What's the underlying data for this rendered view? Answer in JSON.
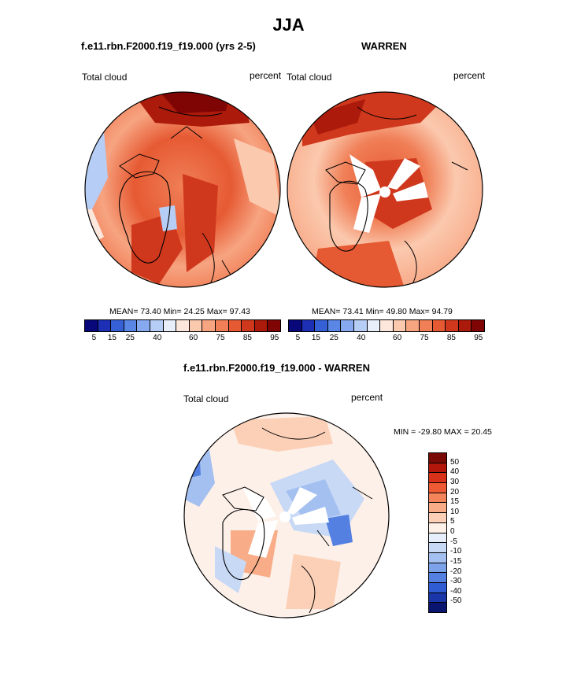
{
  "figure": {
    "title": "JJA"
  },
  "panel_left": {
    "subtitle": "f.e11.rbn.F2000.f19_f19.000 (yrs 2-5)",
    "field_label": "Total cloud",
    "units": "percent",
    "stats": "MEAN=  73.40  Min=  24.25  Max=  97.43"
  },
  "panel_right": {
    "subtitle": "WARREN",
    "field_label": "Total cloud",
    "units": "percent",
    "stats": "MEAN=  73.41  Min=  49.80  Max=  94.79"
  },
  "panel_diff": {
    "subtitle": "f.e11.rbn.F2000.f19_f19.000 - WARREN",
    "field_label": "Total cloud",
    "units": "percent",
    "minmax": "MIN = -29.80 MAX =  20.45"
  },
  "colorbar_top": {
    "colors": [
      "#08087a",
      "#1c2fb5",
      "#3560d6",
      "#5a86e6",
      "#86a9ef",
      "#b6cdf5",
      "#e8eefa",
      "#fde7dc",
      "#fbc9ae",
      "#f7a481",
      "#f07f57",
      "#e65a33",
      "#d0381d",
      "#ab1a0b",
      "#7f0505"
    ],
    "tick_labels": [
      "5",
      "15",
      "25",
      "40",
      "60",
      "75",
      "85",
      "95"
    ]
  },
  "colorbar_diff": {
    "colors_top_to_bottom": [
      "#7a0a05",
      "#b3160b",
      "#d9321a",
      "#ee5a34",
      "#f4845a",
      "#f8ac87",
      "#fbd0b7",
      "#fdf0e8",
      "#e6eefb",
      "#c8d9f6",
      "#a4c0f1",
      "#7ca3ea",
      "#5380e1",
      "#2f5bd3",
      "#1a36a8",
      "#0a1570"
    ],
    "tick_labels": [
      "50",
      "40",
      "30",
      "20",
      "15",
      "10",
      "5",
      "0",
      "-5",
      "-10",
      "-15",
      "-20",
      "-30",
      "-40",
      "-50"
    ]
  }
}
